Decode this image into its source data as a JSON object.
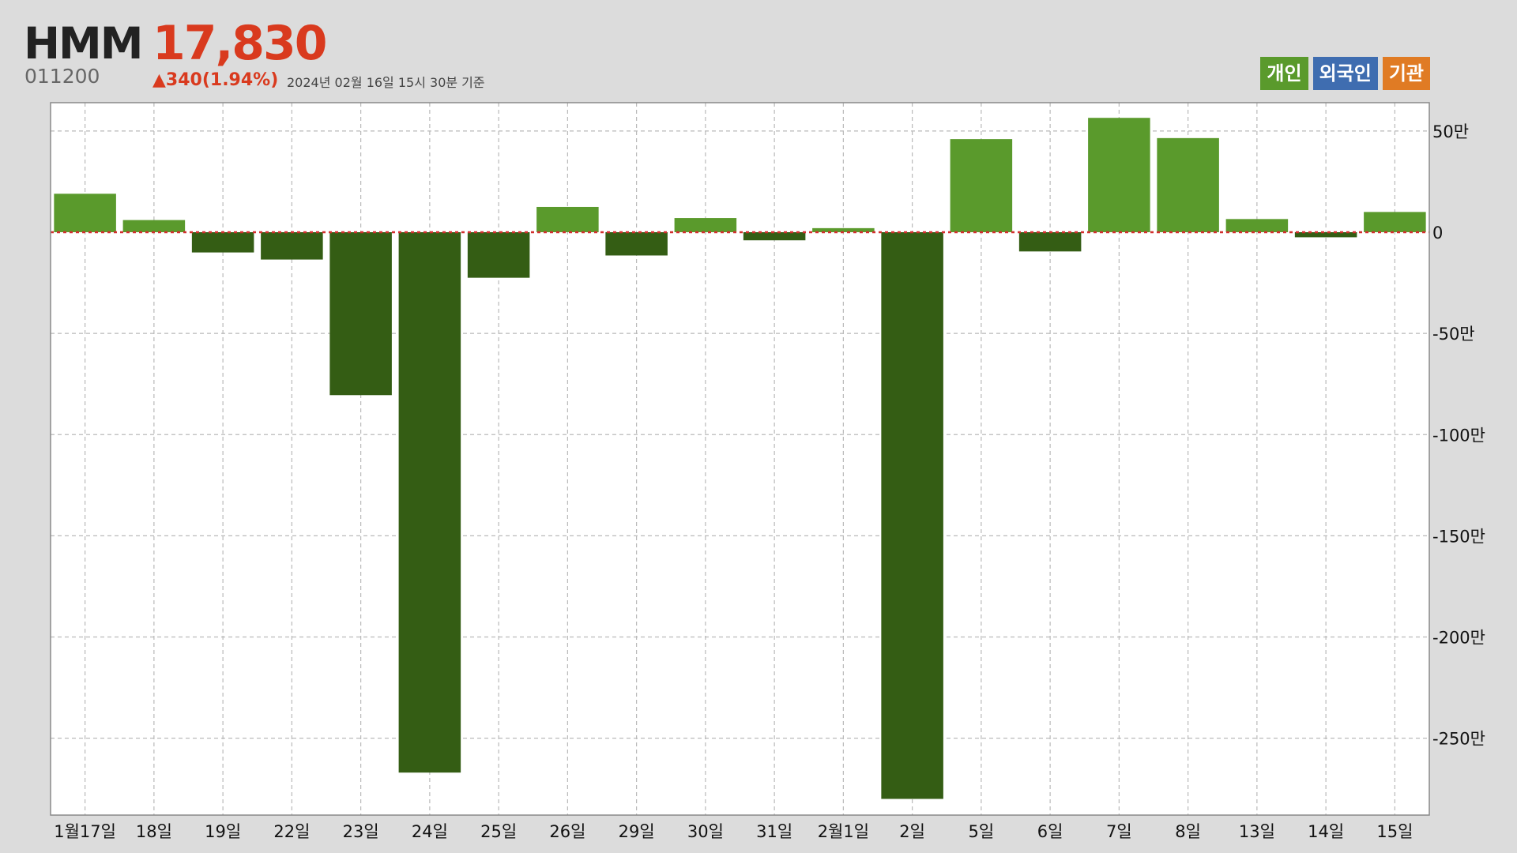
{
  "stock": {
    "name": "HMM",
    "price": "17,830",
    "code": "011200",
    "change": "▲340(1.94%)",
    "as_of": "2024년 02월 16일 15시 30분 기준"
  },
  "legend": [
    {
      "label": "개인",
      "color": "#5a9a2c"
    },
    {
      "label": "외국인",
      "color": "#3f6db0"
    },
    {
      "label": "기관",
      "color": "#e07b24"
    }
  ],
  "colors": {
    "positive_bar": "#5a9a2c",
    "negative_bar": "#345d14",
    "zero_line": "#d32f2f",
    "grid": "#b9b9b9",
    "plot_bg": "#ffffff"
  },
  "chart_data": {
    "type": "bar",
    "series": [
      {
        "name": "개인",
        "values": [
          190000,
          60000,
          -100000,
          -135000,
          -805000,
          -2670000,
          -225000,
          125000,
          -115000,
          70000,
          -40000,
          20000,
          -2800000,
          460000,
          -95000,
          565000,
          465000,
          65000,
          -25000,
          100000
        ]
      }
    ],
    "categories": [
      "1월17일",
      "18일",
      "19일",
      "22일",
      "23일",
      "24일",
      "25일",
      "26일",
      "29일",
      "30일",
      "31일",
      "2월1일",
      "2일",
      "5일",
      "6일",
      "7일",
      "8일",
      "13일",
      "14일",
      "15일"
    ],
    "y_ticks": [
      500000,
      0,
      -500000,
      -1000000,
      -1500000,
      -2000000,
      -2500000
    ],
    "y_tick_labels": [
      "50만",
      "0",
      "-50만",
      "-100만",
      "-150만",
      "-200만",
      "-250만"
    ],
    "ylim": [
      -2880000,
      640000
    ],
    "y_axis_side": "right",
    "grid": true,
    "legend_position": "top-right"
  }
}
